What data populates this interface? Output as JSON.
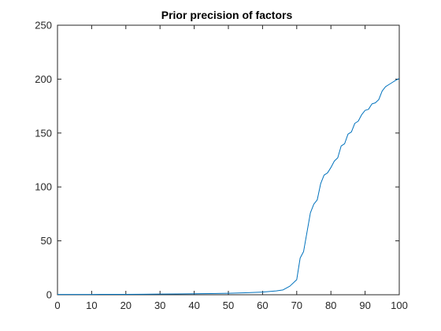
{
  "chart_data": {
    "type": "line",
    "title": "Prior precision of factors",
    "xlabel": "",
    "ylabel": "",
    "xlim": [
      0,
      100
    ],
    "ylim": [
      0,
      250
    ],
    "xticks": [
      0,
      10,
      20,
      30,
      40,
      50,
      60,
      70,
      80,
      90,
      100
    ],
    "yticks": [
      0,
      50,
      100,
      150,
      200,
      250
    ],
    "grid": false,
    "legend": "none",
    "series": [
      {
        "color": "#0072BD",
        "x": [
          0,
          5,
          10,
          15,
          20,
          25,
          30,
          35,
          40,
          45,
          50,
          55,
          60,
          62,
          64,
          66,
          68,
          70,
          71,
          72,
          73,
          74,
          75,
          76,
          77,
          78,
          79,
          80,
          81,
          82,
          83,
          84,
          85,
          86,
          87,
          88,
          89,
          90,
          91,
          92,
          93,
          94,
          95,
          96,
          97,
          98,
          99,
          100
        ],
        "y": [
          0.3,
          0.3,
          0.3,
          0.4,
          0.4,
          0.5,
          0.6,
          0.7,
          0.9,
          1.1,
          1.4,
          1.8,
          2.5,
          3.0,
          3.6,
          4.5,
          8.0,
          14.0,
          34.0,
          40.0,
          58.0,
          76.0,
          84.0,
          88.0,
          103.0,
          111.0,
          113.0,
          118.0,
          124.0,
          127.0,
          138.0,
          140.0,
          149.0,
          151.0,
          159.0,
          161.0,
          167.0,
          171.0,
          172.0,
          177.0,
          178.0,
          181.0,
          189.0,
          193.0,
          195.0,
          197.0,
          199.0,
          200.5
        ]
      }
    ]
  }
}
